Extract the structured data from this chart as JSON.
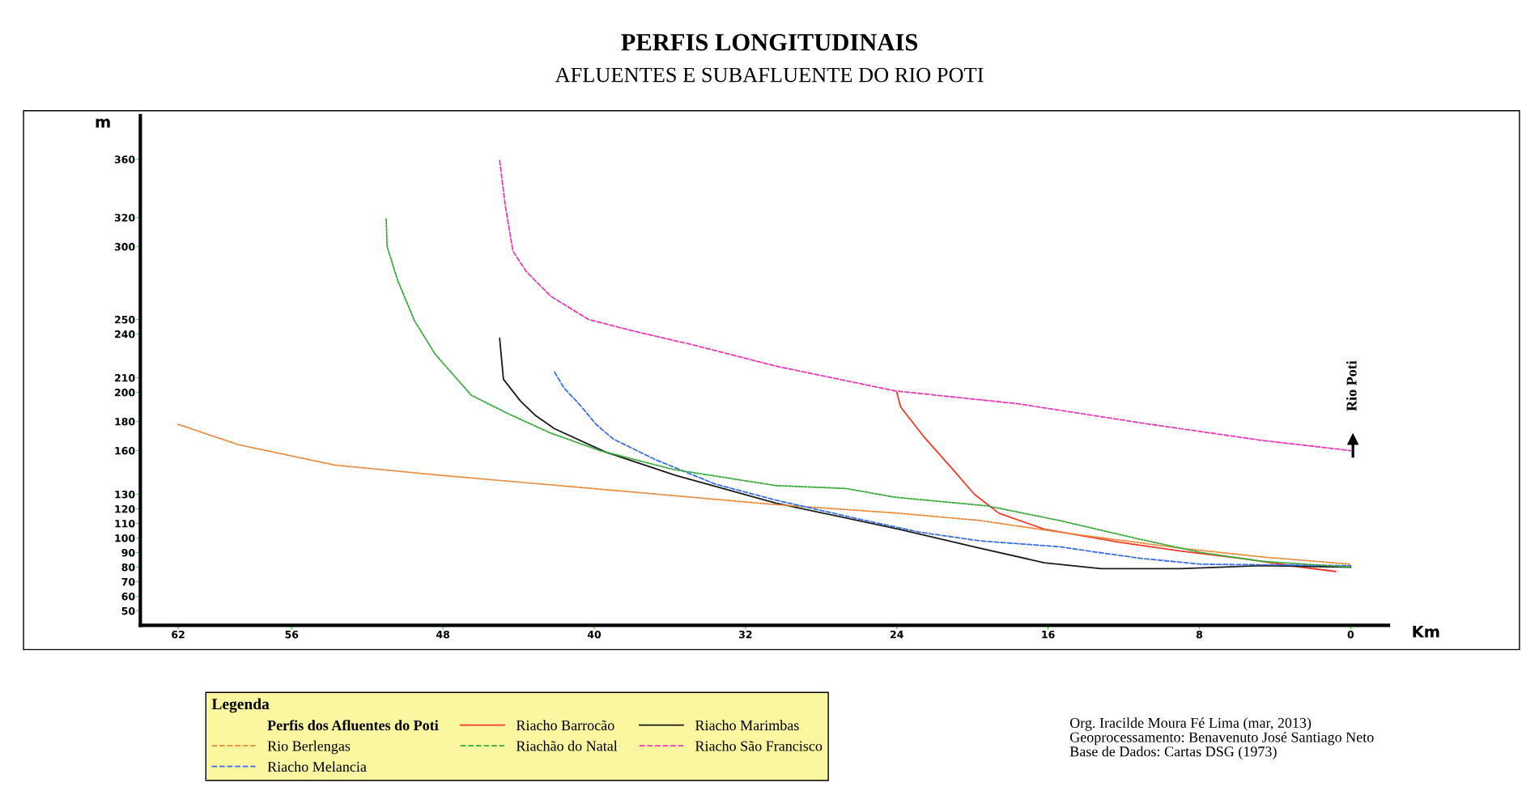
{
  "chart_data": {
    "type": "line",
    "title": "PERFIS LONGITUDINAIS",
    "subtitle": "AFLUENTES E SUBAFLUENTE DO RIO POTI",
    "xlabel": "Km",
    "ylabel": "m",
    "legend_title": "Legenda",
    "legend": "bottom left",
    "grid": false,
    "xlim": [
      64,
      -2
    ],
    "xticks": [
      62,
      56,
      48,
      40,
      32,
      24,
      16,
      8,
      0
    ],
    "ylim": [
      40,
      390
    ],
    "yticks": [
      360,
      320,
      300,
      250,
      240,
      210,
      200,
      180,
      160,
      130,
      120,
      110,
      100,
      90,
      80,
      70,
      60,
      50
    ],
    "annotations": [
      "Perfis dos Afluentes do Poti",
      "Rio Poti",
      "Org. Iracilde Moura Fé Lima (mar, 2013)",
      "Geoprocessamento: Benavenuto José Santiago Neto",
      "Base de Dados: Cartas DSG (1973)"
    ],
    "series": [
      {
        "name": "Rio Berlengas",
        "color": "#e8883a",
        "line_style": "dotted",
        "x": [
          62.0,
          58.8,
          53.7,
          48.1,
          40.1,
          30.5,
          23.9,
          19.6,
          15.4,
          9.0,
          4.7,
          0
        ],
        "values": [
          178,
          164,
          150,
          143,
          134,
          123,
          117,
          112,
          104,
          93,
          87,
          82
        ]
      },
      {
        "name": "Riacho Melancia",
        "color": "#3a6ee8",
        "line_style": "dashed",
        "x": [
          42.1,
          41.6,
          40.8,
          39.9,
          39.0,
          36.8,
          33.6,
          30.4,
          26.0,
          22.8,
          19.6,
          15.4,
          13.3,
          11.1,
          7.9,
          0
        ],
        "values": [
          214,
          203,
          192,
          178,
          168,
          154,
          137,
          126,
          113,
          104,
          98,
          94,
          90,
          86,
          82,
          81
        ]
      },
      {
        "name": "Riacho Barrocão",
        "color": "#f03a2a",
        "line_style": "solid",
        "x": [
          24.0,
          23.8,
          22.6,
          21.1,
          19.9,
          18.6,
          16.2,
          12.2,
          9.0,
          5.8,
          2.6,
          0.8
        ],
        "values": [
          200,
          190,
          170,
          148,
          130,
          117,
          106,
          97,
          91,
          86,
          80,
          77
        ]
      },
      {
        "name": "Riachão do Natal",
        "color": "#3aa83a",
        "line_style": "dotted",
        "x": [
          51.0,
          50.95,
          50.4,
          49.5,
          48.4,
          46.5,
          44.5,
          42.3,
          39.7,
          35.8,
          30.4,
          26.7,
          24.1,
          19.2,
          15.4,
          11.1,
          7.9,
          4.7,
          0
        ],
        "values": [
          319,
          300,
          277,
          249,
          226,
          198,
          185,
          172,
          160,
          147,
          136,
          134,
          128,
          122,
          112,
          99,
          90,
          84,
          80
        ]
      },
      {
        "name": "Riacho Marimbas",
        "color": "#1a1a1a",
        "line_style": "solid",
        "x": [
          45.0,
          44.8,
          43.9,
          43.1,
          42.1,
          39.4,
          35.7,
          30.4,
          23.9,
          19.6,
          16.2,
          13.2,
          9.0,
          4.7,
          0
        ],
        "values": [
          237,
          209,
          194,
          184,
          175,
          159,
          143,
          124,
          106,
          93,
          83,
          79,
          79,
          81,
          80
        ]
      },
      {
        "name": "Riacho São Francisco",
        "color": "#e83ab8",
        "line_style": "dashed",
        "x": [
          45.0,
          44.7,
          44.3,
          43.6,
          42.3,
          40.3,
          37.9,
          34.6,
          30.4,
          24.1,
          17.5,
          11.1,
          4.7,
          0
        ],
        "values": [
          359,
          328,
          297,
          283,
          266,
          250,
          242,
          232,
          218,
          201,
          192,
          179,
          167,
          160
        ]
      }
    ]
  }
}
